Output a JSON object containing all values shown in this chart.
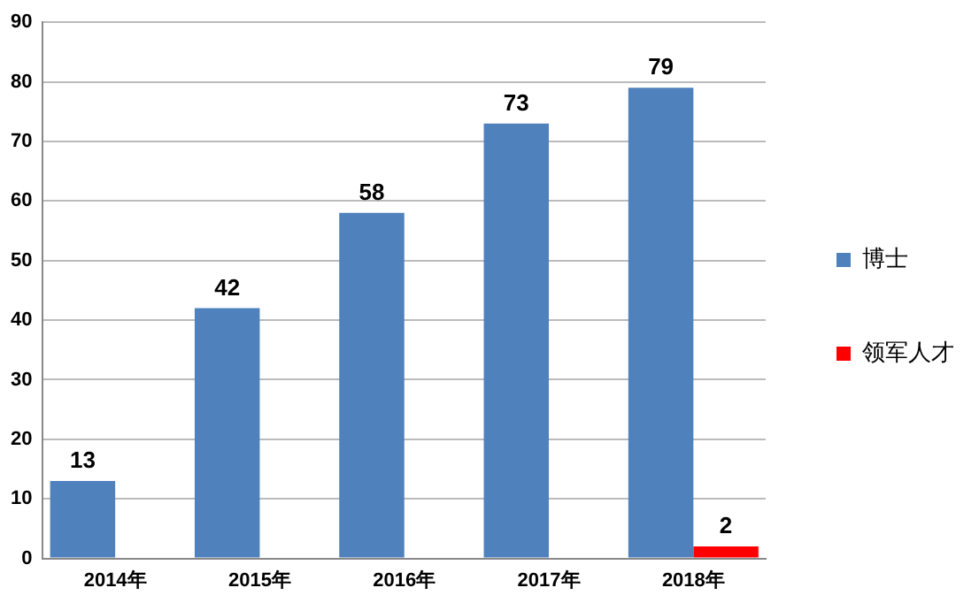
{
  "chart_data": {
    "type": "bar",
    "categories": [
      "2014年",
      "2015年",
      "2016年",
      "2017年",
      "2018年"
    ],
    "series": [
      {
        "name": "博士",
        "color": "#4f81bd",
        "values": [
          13,
          42,
          58,
          73,
          79
        ]
      },
      {
        "name": "领军人才",
        "color": "#ff0000",
        "values": [
          null,
          null,
          null,
          null,
          2
        ]
      }
    ],
    "ylim": [
      0,
      90
    ],
    "yticks": [
      0,
      10,
      20,
      30,
      40,
      50,
      60,
      70,
      80,
      90
    ],
    "grid": "y",
    "legend": "right",
    "data_labels": true
  }
}
